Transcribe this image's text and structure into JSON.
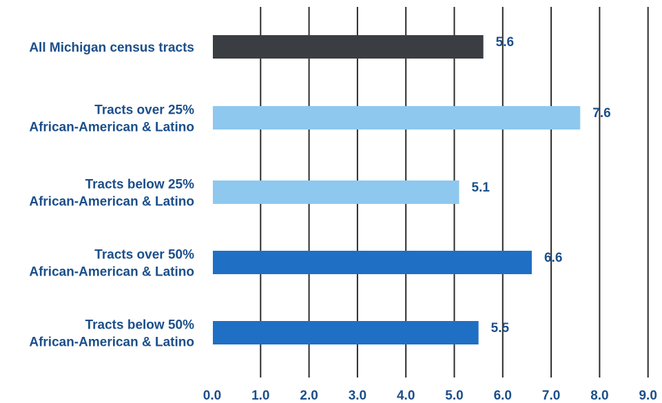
{
  "chart_data": {
    "type": "bar",
    "orientation": "horizontal",
    "categories": [
      [
        "All Michigan census tracts"
      ],
      [
        "Tracts over 25%",
        "African-American & Latino"
      ],
      [
        "Tracts below 25%",
        "African-American & Latino"
      ],
      [
        "Tracts over 50%",
        "African-American & Latino"
      ],
      [
        "Tracts below 50%",
        "African-American & Latino"
      ]
    ],
    "values": [
      5.6,
      7.6,
      5.1,
      6.6,
      5.5
    ],
    "value_labels": [
      "5.6",
      "7.6",
      "5.1",
      "6.6",
      "5.5"
    ],
    "bar_colors": [
      "#3a3d42",
      "#8ec8ef",
      "#8ec8ef",
      "#1f6fc4",
      "#1f6fc4"
    ],
    "xlim": [
      0,
      9
    ],
    "xticks": [
      0,
      1,
      2,
      3,
      4,
      5,
      6,
      7,
      8,
      9
    ],
    "xtick_labels": [
      "0.0",
      "1.0",
      "2.0",
      "3.0",
      "4.0",
      "5.0",
      "6.0",
      "7.0",
      "8.0",
      "9.0"
    ],
    "grid": true,
    "title": "",
    "xlabel": "",
    "ylabel": "",
    "label_color": "#1c4f8a",
    "grid_color": "#2a2a2a"
  }
}
